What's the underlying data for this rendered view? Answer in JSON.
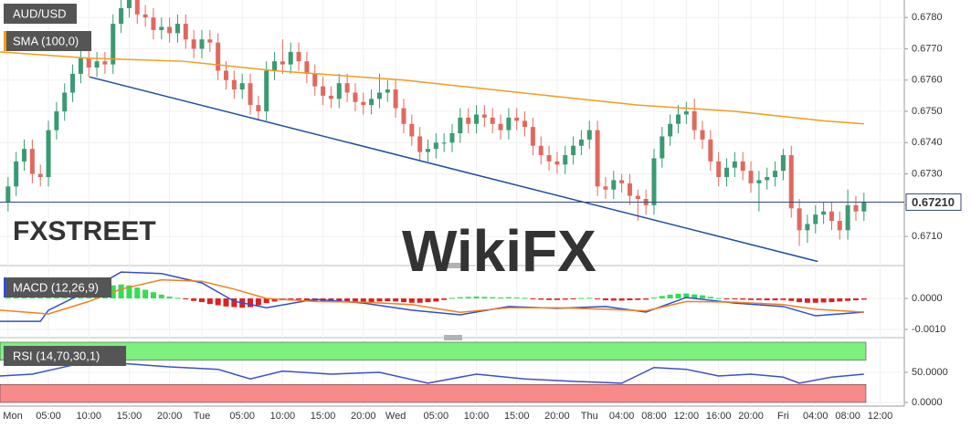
{
  "chart_data": [
    {
      "type": "candlestick",
      "title": "AUD/USD",
      "x": [
        0,
        1,
        2,
        3,
        4,
        5,
        6,
        7,
        8,
        9,
        10,
        11,
        12,
        13,
        14,
        15,
        16,
        17,
        18,
        19,
        20,
        21,
        22,
        23,
        24,
        25,
        26,
        27,
        28,
        29,
        30,
        31,
        32,
        33,
        34,
        35,
        36,
        37,
        38,
        39,
        40,
        41,
        42,
        43,
        44,
        45,
        46,
        47,
        48,
        49,
        50,
        51,
        52,
        53,
        54,
        55,
        56,
        57,
        58,
        59,
        60,
        61,
        62,
        63,
        64,
        65,
        66,
        67,
        68,
        69,
        70,
        71,
        72,
        73,
        74,
        75,
        76,
        77,
        78,
        79,
        80,
        81,
        82,
        83,
        84,
        85,
        86,
        87,
        88,
        89,
        90,
        91,
        92,
        93,
        94,
        95,
        96,
        97,
        98,
        99,
        100,
        101,
        102,
        103,
        104,
        105,
        106
      ],
      "open": [
        0.6721,
        0.6726,
        0.6734,
        0.6738,
        0.673,
        0.6729,
        0.6744,
        0.675,
        0.6756,
        0.6762,
        0.6767,
        0.6764,
        0.6766,
        0.6765,
        0.6778,
        0.6783,
        0.6786,
        0.6781,
        0.678,
        0.6776,
        0.6777,
        0.6775,
        0.6778,
        0.6773,
        0.677,
        0.6773,
        0.6772,
        0.6763,
        0.676,
        0.6757,
        0.6759,
        0.6752,
        0.675,
        0.6763,
        0.6766,
        0.6765,
        0.6769,
        0.6766,
        0.6762,
        0.6758,
        0.6755,
        0.6754,
        0.6759,
        0.6756,
        0.6753,
        0.6752,
        0.6754,
        0.6756,
        0.6757,
        0.6751,
        0.6746,
        0.6742,
        0.6737,
        0.6738,
        0.674,
        0.674,
        0.6743,
        0.6748,
        0.6746,
        0.6749,
        0.6748,
        0.6746,
        0.6744,
        0.6748,
        0.6747,
        0.6745,
        0.6739,
        0.6736,
        0.6734,
        0.6733,
        0.6736,
        0.6739,
        0.6741,
        0.6744,
        0.6726,
        0.6725,
        0.6728,
        0.6727,
        0.6723,
        0.6722,
        0.672,
        0.6735,
        0.6742,
        0.6746,
        0.6749,
        0.675,
        0.6744,
        0.6741,
        0.6734,
        0.6729,
        0.6732,
        0.6734,
        0.6731,
        0.6727,
        0.6728,
        0.6729,
        0.6731,
        0.6736,
        0.6719,
        0.6712,
        0.6714,
        0.6717,
        0.6718,
        0.6715,
        0.6712,
        0.672,
        0.6718
      ],
      "high": [
        0.6729,
        0.6737,
        0.6741,
        0.6741,
        0.6733,
        0.6747,
        0.6753,
        0.6759,
        0.6765,
        0.677,
        0.677,
        0.6769,
        0.6769,
        0.6781,
        0.6786,
        0.6789,
        0.6789,
        0.6784,
        0.6783,
        0.678,
        0.678,
        0.6781,
        0.6781,
        0.6776,
        0.6776,
        0.6776,
        0.6775,
        0.6766,
        0.6763,
        0.6762,
        0.6762,
        0.6755,
        0.6766,
        0.6769,
        0.6773,
        0.6772,
        0.6772,
        0.6769,
        0.6765,
        0.6761,
        0.6758,
        0.6762,
        0.6762,
        0.6759,
        0.6756,
        0.6757,
        0.6762,
        0.676,
        0.676,
        0.6754,
        0.6749,
        0.6745,
        0.6741,
        0.6743,
        0.6743,
        0.6746,
        0.6751,
        0.6751,
        0.6752,
        0.6752,
        0.6751,
        0.6749,
        0.6751,
        0.6751,
        0.675,
        0.6748,
        0.6742,
        0.6739,
        0.6737,
        0.6739,
        0.6742,
        0.6744,
        0.6747,
        0.6747,
        0.6729,
        0.6731,
        0.673,
        0.673,
        0.6725,
        0.6725,
        0.6738,
        0.6745,
        0.6749,
        0.6752,
        0.6753,
        0.6754,
        0.6747,
        0.6744,
        0.6737,
        0.6735,
        0.6737,
        0.6737,
        0.6734,
        0.6731,
        0.6732,
        0.6734,
        0.6738,
        0.6739,
        0.6722,
        0.6717,
        0.672,
        0.6721,
        0.6721,
        0.6718,
        0.6725,
        0.6723,
        0.6724
      ],
      "low": [
        0.6718,
        0.6723,
        0.6731,
        0.6727,
        0.6726,
        0.6726,
        0.6741,
        0.6747,
        0.6753,
        0.6759,
        0.6761,
        0.6761,
        0.6762,
        0.6762,
        0.6775,
        0.678,
        0.6778,
        0.6777,
        0.6773,
        0.6773,
        0.6772,
        0.6772,
        0.677,
        0.6767,
        0.6767,
        0.6769,
        0.676,
        0.6757,
        0.6754,
        0.6754,
        0.6749,
        0.6747,
        0.6747,
        0.676,
        0.6762,
        0.6762,
        0.6763,
        0.6759,
        0.6755,
        0.6752,
        0.6751,
        0.6751,
        0.6753,
        0.675,
        0.6749,
        0.6749,
        0.6751,
        0.6753,
        0.6748,
        0.6743,
        0.6739,
        0.6734,
        0.6734,
        0.6735,
        0.6737,
        0.6737,
        0.674,
        0.6743,
        0.6743,
        0.6745,
        0.6743,
        0.6741,
        0.6741,
        0.6744,
        0.6742,
        0.6736,
        0.6733,
        0.6731,
        0.673,
        0.673,
        0.6733,
        0.6736,
        0.6738,
        0.6723,
        0.6722,
        0.6722,
        0.6724,
        0.672,
        0.6715,
        0.6717,
        0.6717,
        0.6732,
        0.6739,
        0.6743,
        0.6746,
        0.6741,
        0.6738,
        0.6731,
        0.6726,
        0.6726,
        0.6729,
        0.6728,
        0.6724,
        0.6718,
        0.6725,
        0.6726,
        0.6728,
        0.6716,
        0.6707,
        0.6708,
        0.6711,
        0.6714,
        0.6712,
        0.6709,
        0.6709,
        0.6715,
        0.6715
      ],
      "close": [
        0.6726,
        0.6734,
        0.6738,
        0.673,
        0.6729,
        0.6744,
        0.675,
        0.6756,
        0.6762,
        0.6767,
        0.6764,
        0.6766,
        0.6765,
        0.6778,
        0.6783,
        0.6786,
        0.6781,
        0.678,
        0.6776,
        0.6777,
        0.6775,
        0.6778,
        0.6773,
        0.677,
        0.6773,
        0.6772,
        0.6763,
        0.676,
        0.6757,
        0.6759,
        0.6752,
        0.675,
        0.6763,
        0.6766,
        0.6765,
        0.6769,
        0.6766,
        0.6762,
        0.6758,
        0.6755,
        0.6754,
        0.6759,
        0.6756,
        0.6753,
        0.6752,
        0.6754,
        0.6756,
        0.6757,
        0.6751,
        0.6746,
        0.6742,
        0.6737,
        0.6738,
        0.674,
        0.674,
        0.6743,
        0.6748,
        0.6746,
        0.6749,
        0.6748,
        0.6746,
        0.6744,
        0.6748,
        0.6747,
        0.6745,
        0.6739,
        0.6736,
        0.6734,
        0.6733,
        0.6736,
        0.6739,
        0.6741,
        0.6744,
        0.6726,
        0.6725,
        0.6728,
        0.6727,
        0.6723,
        0.6722,
        0.672,
        0.6735,
        0.6742,
        0.6746,
        0.6749,
        0.675,
        0.6744,
        0.6741,
        0.6734,
        0.6729,
        0.6732,
        0.6734,
        0.6731,
        0.6727,
        0.6728,
        0.6729,
        0.6731,
        0.6736,
        0.6719,
        0.6712,
        0.6714,
        0.6717,
        0.6718,
        0.6715,
        0.6712,
        0.672,
        0.6718,
        0.6721
      ],
      "up_color": "#3a9a72",
      "down_color": "#e0695e",
      "overlays": [
        {
          "name": "SMA (100,0)",
          "type": "line",
          "color": "#f39c1a",
          "x": [
            -1,
            10,
            21.7,
            33,
            49,
            67,
            78,
            90,
            101,
            106
          ],
          "values": [
            0.6769,
            0.6767,
            0.6766,
            0.6763,
            0.676,
            0.6755,
            0.6752,
            0.675,
            0.6747,
            0.6746
          ]
        },
        {
          "type": "line",
          "color": "#1f4fa0",
          "x": [
            10.1,
            100.3
          ],
          "values": [
            0.6761,
            0.6702
          ]
        }
      ],
      "last_price": {
        "value": 0.6721,
        "label": "0.67210"
      },
      "ylim": [
        0.6701,
        0.67856
      ],
      "yticks": [
        {
          "value": 0.671,
          "label": "0.6710"
        },
        {
          "value": 0.672,
          "label": "0.6720"
        },
        {
          "value": 0.673,
          "label": "0.6730"
        },
        {
          "value": 0.674,
          "label": "0.6740"
        },
        {
          "value": 0.675,
          "label": "0.6750"
        },
        {
          "value": 0.676,
          "label": "0.6760"
        },
        {
          "value": 0.677,
          "label": "0.6770"
        },
        {
          "value": 0.678,
          "label": "0.6780"
        }
      ],
      "xlim": [
        -1,
        111
      ],
      "xticks": [
        {
          "value": 0,
          "label": "Mon"
        },
        {
          "value": 5,
          "label": "05:00"
        },
        {
          "value": 10,
          "label": "10:00"
        },
        {
          "value": 15,
          "label": "15:00"
        },
        {
          "value": 20,
          "label": "20:00"
        },
        {
          "value": 24,
          "label": "Tue"
        },
        {
          "value": 29,
          "label": "05:00"
        },
        {
          "value": 34,
          "label": "10:00"
        },
        {
          "value": 39,
          "label": "15:00"
        },
        {
          "value": 44,
          "label": "20:00"
        },
        {
          "value": 48,
          "label": "Wed"
        },
        {
          "value": 53,
          "label": "05:00"
        },
        {
          "value": 58,
          "label": "10:00"
        },
        {
          "value": 63,
          "label": "15:00"
        },
        {
          "value": 68,
          "label": "20:00"
        },
        {
          "value": 72,
          "label": "Thu"
        },
        {
          "value": 76,
          "label": "04:00"
        },
        {
          "value": 80,
          "label": "08:00"
        },
        {
          "value": 84,
          "label": "12:00"
        },
        {
          "value": 88,
          "label": "16:00"
        },
        {
          "value": 92,
          "label": "20:00"
        },
        {
          "value": 96,
          "label": "Fri"
        },
        {
          "value": 100,
          "label": "04:00"
        },
        {
          "value": 104,
          "label": "08:00"
        },
        {
          "value": 108,
          "label": "12:00"
        }
      ],
      "grid": true,
      "watermarks": [
        "FXSTREET",
        "WikiFX"
      ]
    },
    {
      "type": "macd",
      "title": "MACD (12,26,9)",
      "histogram": {
        "up_color": "#33dd55",
        "down_color": "#e02020",
        "values": [
          2e-05,
          5e-05,
          8e-05,
          0.0001,
          0.00012,
          0.00015,
          0.00018,
          0.0002,
          0.00025,
          0.0003,
          0.00035,
          0.00038,
          0.0004,
          0.00042,
          0.00045,
          0.00042,
          0.00035,
          0.00028,
          0.0002,
          0.00012,
          6e-05,
          2e-05,
          -3e-05,
          -8e-05,
          -0.00012,
          -0.00018,
          -0.00022,
          -0.00026,
          -0.00028,
          -0.0003,
          -0.00028,
          -0.00022,
          -0.00015,
          -0.0001,
          -6e-05,
          -3e-05,
          -4e-05,
          -6e-05,
          -8e-05,
          -0.0001,
          -0.0001,
          -0.0001,
          -0.00011,
          -0.00012,
          -0.00013,
          -0.00012,
          -0.0001,
          -9e-05,
          -0.0001,
          -0.00012,
          -0.00014,
          -0.00014,
          -0.00012,
          -0.0001,
          -5e-05,
          2e-05,
          4e-05,
          5e-05,
          6e-05,
          5e-05,
          4e-05,
          3e-05,
          4e-05,
          3e-05,
          2e-05,
          -2e-05,
          -4e-05,
          -5e-05,
          -5e-05,
          -4e-05,
          -2e-05,
          1e-05,
          2e-05,
          -3e-05,
          -6e-05,
          -7e-05,
          -7e-05,
          -6e-05,
          -5e-05,
          -4e-05,
          3e-05,
          8e-05,
          0.00012,
          0.00015,
          0.00016,
          0.00013,
          0.0001,
          5e-05,
          1e-05,
          -2e-05,
          -3e-05,
          -4e-05,
          -5e-05,
          -5e-05,
          -6e-05,
          -6e-05,
          -5e-05,
          -8e-05,
          -0.00012,
          -0.00014,
          -0.00014,
          -0.00013,
          -0.00012,
          -0.0001,
          -8e-05,
          -6e-05,
          -4e-05
        ]
      },
      "series": [
        {
          "color": "#2f4fd0",
          "x": [
            -1,
            4,
            5,
            10,
            14,
            19,
            24,
            28,
            32,
            38,
            44,
            50,
            56,
            62,
            68,
            74,
            79,
            84,
            90,
            96,
            100,
            106
          ],
          "values": [
            -0.00074,
            -0.00074,
            -0.00038,
            0.00026,
            0.00085,
            0.0008,
            0.0005,
            -9e-05,
            -0.0003,
            -3e-05,
            -0.00015,
            -0.00038,
            -0.00053,
            -0.00026,
            -0.00032,
            -0.00026,
            -0.00044,
            3e-05,
            -0.00015,
            -0.00026,
            -0.00056,
            -0.00044
          ]
        },
        {
          "color": "#f08020",
          "x": [
            -1,
            5,
            10,
            14,
            19,
            24,
            28,
            32,
            38,
            44,
            50,
            56,
            62,
            68,
            74,
            79,
            84,
            90,
            96,
            100,
            106
          ],
          "values": [
            -0.00038,
            -0.0005,
            -0.0001,
            0.0003,
            0.0006,
            0.00055,
            0.0003,
            0,
            -0.0001,
            -0.00012,
            -0.0002,
            -0.00045,
            -0.0003,
            -0.0003,
            -0.00035,
            -0.0004,
            -0.0001,
            -0.00012,
            -0.0002,
            -0.00035,
            -0.00044
          ]
        }
      ],
      "ylim": [
        -0.0012,
        0.00085
      ],
      "yticks": [
        {
          "value": 0,
          "label": "0.0000"
        },
        {
          "value": -0.001,
          "label": "-0.0010"
        }
      ]
    },
    {
      "type": "rsi",
      "title": "RSI (14,70,30,1)",
      "bands": [
        {
          "from": 70,
          "to": 100,
          "color": "#7ef07e"
        },
        {
          "from": 0,
          "to": 30,
          "color": "#f88a8a"
        }
      ],
      "series": [
        {
          "color": "#3a52c8",
          "x": [
            -1,
            3,
            8,
            14,
            20,
            26,
            30,
            34,
            40,
            46,
            52,
            58,
            64,
            70,
            76,
            80,
            84,
            88,
            92,
            96,
            98,
            102,
            106
          ],
          "values": [
            44,
            47,
            62,
            65,
            59,
            55,
            39,
            52,
            47,
            50,
            32,
            47,
            39,
            35,
            32,
            58,
            55,
            44,
            47,
            42,
            32,
            42,
            47
          ]
        }
      ],
      "ylim": [
        0,
        100
      ],
      "yticks": [
        {
          "value": 50,
          "label": "50.0000"
        },
        {
          "value": 0,
          "label": "0.0000"
        }
      ]
    }
  ]
}
